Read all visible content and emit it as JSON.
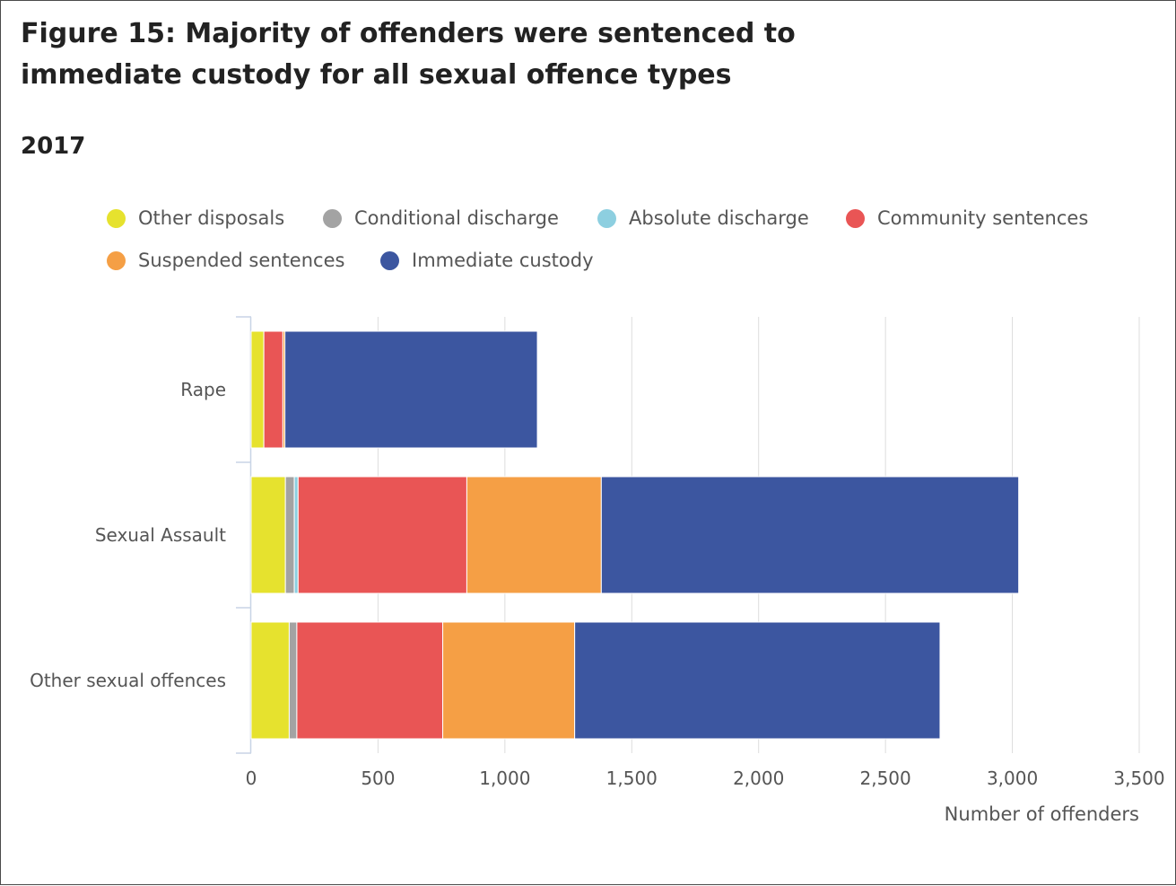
{
  "title": "Figure 15: Majority of offenders were sentenced to immediate custody for all sexual offence types",
  "subtitle": "2017",
  "colors": {
    "other_disposals": "#e6e22e",
    "conditional_discharge": "#a3a3a3",
    "absolute_discharge": "#8dcfe0",
    "community_sentences": "#e95555",
    "suspended_sentences": "#f59f45",
    "immediate_custody": "#3c56a0"
  },
  "legend": [
    {
      "label": "Other disposals",
      "color": "#e6e22e"
    },
    {
      "label": "Conditional discharge",
      "color": "#a3a3a3"
    },
    {
      "label": "Absolute discharge",
      "color": "#8dcfe0"
    },
    {
      "label": "Community sentences",
      "color": "#e95555"
    },
    {
      "label": "Suspended sentences",
      "color": "#f59f45"
    },
    {
      "label": "Immediate custody",
      "color": "#3c56a0"
    }
  ],
  "chart_data": {
    "type": "bar",
    "orientation": "horizontal",
    "stacked": true,
    "title": "Figure 15: Majority of offenders were sentenced to immediate custody for all sexual offence types",
    "subtitle": "2017",
    "categories": [
      "Rape",
      "Sexual Assault",
      "Other sexual offences"
    ],
    "series": [
      {
        "name": "Other disposals",
        "color": "#e6e22e",
        "values": [
          50,
          135,
          150
        ]
      },
      {
        "name": "Conditional discharge",
        "color": "#a3a3a3",
        "values": [
          0,
          35,
          30
        ]
      },
      {
        "name": "Absolute discharge",
        "color": "#8dcfe0",
        "values": [
          0,
          15,
          0
        ]
      },
      {
        "name": "Community sentences",
        "color": "#e95555",
        "values": [
          75,
          665,
          575
        ]
      },
      {
        "name": "Suspended sentences",
        "color": "#f59f45",
        "values": [
          8,
          530,
          520
        ]
      },
      {
        "name": "Immediate custody",
        "color": "#3c56a0",
        "values": [
          995,
          1645,
          1440
        ]
      }
    ],
    "xlabel": "Number of offenders",
    "ylabel": "",
    "xlim": [
      0,
      3500
    ],
    "xticks": [
      0,
      500,
      1000,
      1500,
      2000,
      2500,
      3000,
      3500
    ],
    "xtick_labels": [
      "0",
      "500",
      "1,000",
      "1,500",
      "2,000",
      "2,500",
      "3,000",
      "3,500"
    ],
    "grid": true,
    "legend_position": "top"
  }
}
